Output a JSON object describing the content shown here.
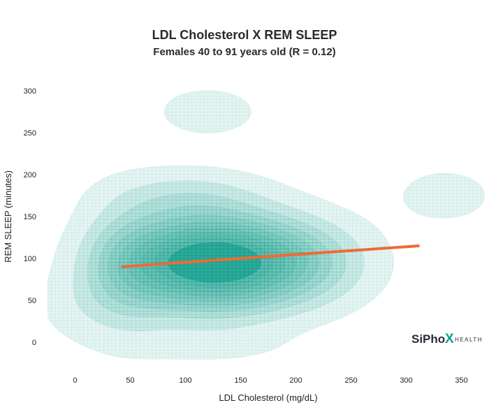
{
  "chart_data": {
    "type": "density-contour",
    "title": "LDL Cholesterol X REM SLEEP",
    "subtitle": "Females 40 to 91 years old (R = 0.12)",
    "xlabel": "LDL Cholesterol (mg/dL)",
    "ylabel": "REM SLEEP (minutes)",
    "xlim": [
      -25,
      375
    ],
    "ylim": [
      -25,
      325
    ],
    "xticks": [
      0,
      50,
      100,
      150,
      200,
      250,
      300,
      350
    ],
    "yticks": [
      0,
      50,
      100,
      150,
      200,
      250,
      300
    ],
    "grid": false,
    "fill_color": "#0a9a88",
    "line_color": "#ee6a35",
    "density_peaks": [
      {
        "x": 120,
        "y": 95,
        "sx": 52,
        "sy": 38,
        "weight": 1.0
      },
      {
        "x": 45,
        "y": 85,
        "sx": 28,
        "sy": 50,
        "weight": 0.22
      },
      {
        "x": 200,
        "y": 95,
        "sx": 45,
        "sy": 35,
        "weight": 0.3
      },
      {
        "x": 100,
        "y": 175,
        "sx": 48,
        "sy": 22,
        "weight": 0.14
      },
      {
        "x": 120,
        "y": 275,
        "sx": 28,
        "sy": 18,
        "weight": 0.13
      },
      {
        "x": 335,
        "y": 175,
        "sx": 30,
        "sy": 22,
        "weight": 0.1
      },
      {
        "x": 0,
        "y": 40,
        "sx": 28,
        "sy": 30,
        "weight": 0.06
      },
      {
        "x": 120,
        "y": -5,
        "sx": 55,
        "sy": 16,
        "weight": 0.06
      }
    ],
    "contour_levels": 10,
    "trend_line": {
      "x": [
        42,
        312
      ],
      "y": [
        90,
        115
      ]
    }
  },
  "brand": {
    "name_pre": "SiPho",
    "name_x": "X",
    "name_post": "HEALTH",
    "color_dark": "#2b2b3a",
    "color_accent": "#0aa58f"
  }
}
